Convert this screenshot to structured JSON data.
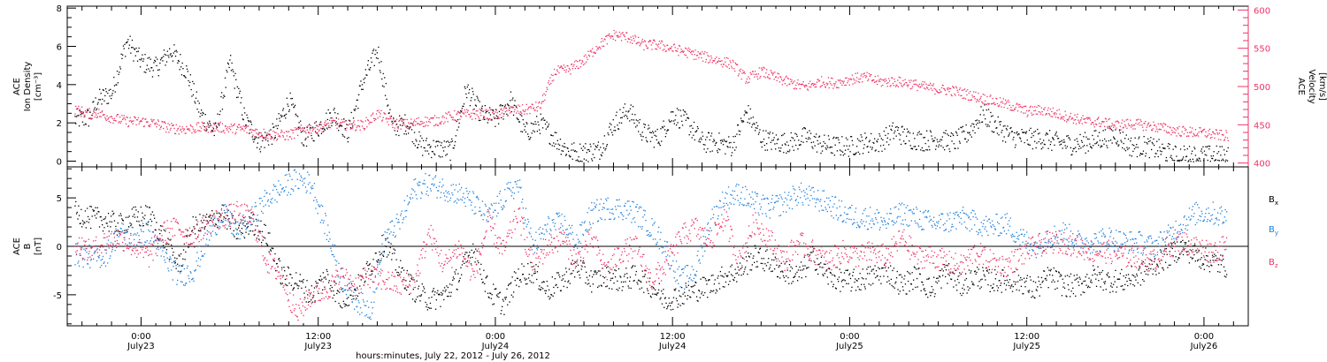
{
  "chart_data": [
    {
      "type": "scatter",
      "title": "",
      "xlabel": "",
      "ylabel": "ACE Ion Density [cm⁻³]",
      "ylabel_lines": [
        "ACE",
        "Ion Density",
        "[cm⁻³]"
      ],
      "ylim": [
        -0.3,
        8.1
      ],
      "yticks": [
        0,
        2,
        4,
        6,
        8
      ],
      "ytick_labels": [
        "0",
        "2",
        "4",
        "6",
        "8"
      ],
      "y2label": "ACE Velocity [km/s]",
      "y2label_lines": [
        "ACE",
        "Velocity",
        "[km/s]"
      ],
      "y2lim": [
        395,
        605
      ],
      "y2ticks": [
        400,
        450,
        500,
        550,
        600
      ],
      "y2tick_labels": [
        "400",
        "450",
        "500",
        "550",
        "600"
      ],
      "xlim_hours": [
        -5,
        75
      ],
      "series": [
        {
          "name": "",
          "axis": "left",
          "color": "#000000",
          "x_hours": [
            -4.5,
            -3.5,
            -3,
            -2,
            -1,
            0,
            1,
            2,
            3,
            4,
            5,
            6,
            7,
            8,
            9,
            10,
            11,
            12,
            13,
            14,
            15,
            16,
            17,
            18,
            19,
            20,
            21,
            22,
            23,
            24,
            25,
            26,
            27,
            28,
            29,
            30,
            31,
            32,
            33,
            34,
            35,
            36,
            37,
            38,
            39,
            40,
            41,
            42,
            43,
            44,
            45,
            46,
            47,
            48,
            49,
            50,
            51,
            52,
            53,
            54,
            55,
            56,
            57,
            58,
            59,
            60,
            61,
            62,
            63,
            64,
            65,
            66,
            67,
            68,
            69,
            70,
            71,
            72,
            73,
            73.6
          ],
          "values": [
            2.2,
            2.3,
            3.2,
            3.6,
            6.3,
            5.2,
            4.9,
            5.8,
            4.8,
            2.5,
            1.5,
            5.2,
            2.2,
            1.0,
            1.5,
            3.2,
            1.2,
            1.8,
            2.5,
            1.5,
            4.2,
            5.8,
            1.8,
            2.0,
            0.8,
            0.7,
            0.6,
            3.8,
            2.5,
            2.2,
            3.2,
            1.5,
            2.0,
            1.2,
            0.5,
            0.5,
            0.6,
            2.0,
            2.7,
            1.5,
            1.2,
            2.5,
            2.0,
            1.0,
            1.0,
            0.8,
            2.6,
            1.2,
            1.0,
            1.0,
            1.3,
            0.9,
            0.8,
            0.8,
            1.0,
            1.0,
            1.6,
            1.2,
            1.1,
            1.2,
            1.0,
            1.5,
            2.5,
            1.8,
            1.3,
            1.2,
            1.2,
            1.0,
            0.9,
            1.0,
            1.2,
            1.4,
            0.8,
            0.8,
            0.6,
            0.3,
            0.3,
            0.3,
            0.3,
            0.3
          ]
        },
        {
          "name": "",
          "axis": "right",
          "color": "#ee3366",
          "x_hours": [
            -4.5,
            -3.5,
            -3,
            -2,
            -1,
            0,
            1,
            2,
            3,
            4,
            5,
            6,
            7,
            8,
            9,
            10,
            11,
            12,
            13,
            14,
            15,
            16,
            17,
            18,
            19,
            20,
            21,
            22,
            23,
            24,
            25,
            26,
            27,
            28,
            29,
            30,
            31,
            32,
            33,
            34,
            35,
            36,
            37,
            38,
            39,
            40,
            41,
            42,
            43,
            44,
            45,
            46,
            47,
            48,
            49,
            50,
            51,
            52,
            53,
            54,
            55,
            56,
            57,
            58,
            59,
            60,
            61,
            62,
            63,
            64,
            65,
            66,
            67,
            68,
            69,
            70,
            71,
            72,
            73,
            73.6
          ],
          "values": [
            470,
            465,
            466,
            460,
            455,
            455,
            452,
            446,
            445,
            447,
            448,
            446,
            445,
            440,
            437,
            437,
            445,
            447,
            453,
            450,
            450,
            465,
            453,
            451,
            455,
            456,
            462,
            464,
            465,
            463,
            470,
            470,
            475,
            520,
            523,
            535,
            555,
            568,
            565,
            555,
            555,
            550,
            545,
            540,
            535,
            530,
            510,
            520,
            512,
            505,
            500,
            507,
            505,
            510,
            513,
            507,
            507,
            505,
            500,
            497,
            495,
            490,
            485,
            480,
            475,
            468,
            470,
            465,
            460,
            455,
            454,
            450,
            452,
            450,
            447,
            443,
            441,
            440,
            437,
            436
          ]
        }
      ],
      "xticks": [],
      "xtick_labels": []
    },
    {
      "type": "scatter",
      "title": "",
      "xlabel": "hours:minutes, July 22, 2012 - July 26, 2012",
      "ylabel": "ACE B [nT]",
      "ylabel_lines": [
        "ACE",
        "B",
        "[nT]"
      ],
      "ylim": [
        -8.2,
        8.2
      ],
      "yticks": [
        -5,
        0,
        5
      ],
      "ytick_labels": [
        "-5",
        "0",
        "5"
      ],
      "zero_line": true,
      "xlim_hours": [
        -5,
        75
      ],
      "xticks_hours": [
        0,
        12,
        24,
        36,
        48,
        60,
        72
      ],
      "xtick_labels": [
        "0:00",
        "12:00",
        "0:00",
        "12:00",
        "0:00",
        "12:00",
        "0:00"
      ],
      "xtick_dates": [
        "July23",
        "July23",
        "July24",
        "July24",
        "July25",
        "July25",
        "July26"
      ],
      "legend_placement": "right",
      "series": [
        {
          "name": "Bx",
          "name_base": "B",
          "name_sub": "x",
          "color": "#000000",
          "x_hours": [
            -4.5,
            -3.5,
            -2.5,
            -1.5,
            -0.5,
            0.5,
            1.5,
            2.5,
            3.5,
            4.5,
            5.5,
            6.5,
            7.5,
            8.5,
            9.5,
            10.5,
            11.5,
            12.5,
            13.5,
            14.5,
            15.5,
            16.5,
            17.5,
            18.5,
            19.5,
            20.5,
            21.5,
            22.5,
            23.5,
            24.5,
            25.5,
            26.5,
            27.5,
            28.5,
            29.5,
            30.5,
            31.5,
            32.5,
            33.5,
            34.5,
            35.5,
            36.5,
            37.5,
            38.5,
            39.5,
            40.5,
            41.5,
            42.5,
            43.5,
            44.5,
            45.5,
            46.5,
            47.5,
            48.5,
            49.5,
            50.5,
            51.5,
            52.5,
            53.5,
            54.5,
            55.5,
            56.5,
            57.5,
            58.5,
            59.5,
            60.5,
            61.5,
            62.5,
            63.5,
            64.5,
            65.5,
            66.5,
            67.5,
            68.5,
            69.5,
            70.5,
            71.5,
            72.5,
            73.5
          ],
          "values": [
            3.5,
            3.0,
            2.8,
            2.2,
            3.0,
            3.2,
            1.0,
            -2.0,
            2.0,
            2.5,
            3.5,
            1.5,
            2.5,
            1.0,
            -3.0,
            -3.5,
            -5.0,
            -3.0,
            -5.5,
            -4.5,
            -2.0,
            0.5,
            -2.5,
            -4.5,
            -5.5,
            -5.0,
            -3.0,
            0.0,
            -4.5,
            -6.0,
            -3.0,
            -2.5,
            -4.5,
            -3.5,
            -2.0,
            -3.5,
            -3.0,
            -3.5,
            -3.0,
            -4.0,
            -5.5,
            -5.0,
            -4.5,
            -4.0,
            -3.0,
            -2.5,
            -1.0,
            -1.5,
            -2.5,
            -3.0,
            -1.0,
            -3.0,
            -3.5,
            -3.5,
            -3.0,
            -2.5,
            -4.0,
            -3.0,
            -4.5,
            -2.5,
            -4.0,
            -3.0,
            -3.5,
            -3.5,
            -3.5,
            -4.5,
            -3.0,
            -4.0,
            -4.0,
            -3.0,
            -3.5,
            -3.5,
            -3.0,
            -2.0,
            -1.0,
            0.0,
            -1.0,
            -1.5,
            -2.0
          ]
        },
        {
          "name": "By",
          "name_base": "B",
          "name_sub": "y",
          "color": "#1f7fd9",
          "x_hours": [
            -4.5,
            -3.5,
            -2.5,
            -1.5,
            -0.5,
            0.5,
            1.5,
            2.5,
            3.5,
            4.5,
            5.5,
            6.5,
            7.5,
            8.5,
            9.5,
            10.5,
            11.5,
            12.5,
            13.5,
            14.5,
            15.5,
            16.5,
            17.5,
            18.5,
            19.5,
            20.5,
            21.5,
            22.5,
            23.5,
            24.5,
            25.5,
            26.5,
            27.5,
            28.5,
            29.5,
            30.5,
            31.5,
            32.5,
            33.5,
            34.5,
            35.5,
            36.5,
            37.5,
            38.5,
            39.5,
            40.5,
            41.5,
            42.5,
            43.5,
            44.5,
            45.5,
            46.5,
            47.5,
            48.5,
            49.5,
            50.5,
            51.5,
            52.5,
            53.5,
            54.5,
            55.5,
            56.5,
            57.5,
            58.5,
            59.5,
            60.5,
            61.5,
            62.5,
            63.5,
            64.5,
            65.5,
            66.5,
            67.5,
            68.5,
            69.5,
            70.5,
            71.5,
            72.5,
            73.5
          ],
          "values": [
            -0.8,
            -1.0,
            -1.0,
            1.5,
            1.0,
            1.5,
            -1.0,
            -3.0,
            -2.5,
            1.0,
            3.5,
            1.5,
            3.0,
            5.0,
            6.0,
            7.0,
            6.5,
            2.0,
            -3.0,
            -5.5,
            -6.5,
            1.0,
            2.5,
            6.0,
            6.5,
            6.0,
            5.5,
            4.5,
            3.0,
            5.0,
            6.5,
            0.0,
            2.0,
            2.5,
            0.5,
            3.5,
            4.0,
            4.0,
            3.5,
            2.0,
            0.0,
            -3.5,
            -2.5,
            2.5,
            5.0,
            5.5,
            4.5,
            4.0,
            4.5,
            5.5,
            5.0,
            4.5,
            3.5,
            3.0,
            3.0,
            2.5,
            3.5,
            3.0,
            2.5,
            2.5,
            3.0,
            2.5,
            2.0,
            2.5,
            1.0,
            0.0,
            1.0,
            1.5,
            0.5,
            0.5,
            1.0,
            0.5,
            0.5,
            0.0,
            1.0,
            2.5,
            3.5,
            3.5,
            3.0
          ]
        },
        {
          "name": "Bz",
          "name_base": "B",
          "name_sub": "z",
          "color": "#ee3366",
          "x_hours": [
            -4.5,
            -3.5,
            -2.5,
            -1.5,
            -0.5,
            0.5,
            1.5,
            2.5,
            3.5,
            4.5,
            5.5,
            6.5,
            7.5,
            8.5,
            9.5,
            10.5,
            11.5,
            12.5,
            13.5,
            14.5,
            15.5,
            16.5,
            17.5,
            18.5,
            19.5,
            20.5,
            21.5,
            22.5,
            23.5,
            24.5,
            25.5,
            26.5,
            27.5,
            28.5,
            29.5,
            30.5,
            31.5,
            32.5,
            33.5,
            34.5,
            35.5,
            36.5,
            37.5,
            38.5,
            39.5,
            40.5,
            41.5,
            42.5,
            43.5,
            44.5,
            45.5,
            46.5,
            47.5,
            48.5,
            49.5,
            50.5,
            51.5,
            52.5,
            53.5,
            54.5,
            55.5,
            56.5,
            57.5,
            58.5,
            59.5,
            60.5,
            61.5,
            62.5,
            63.5,
            64.5,
            65.5,
            66.5,
            67.5,
            68.5,
            69.5,
            70.5,
            71.5,
            72.5,
            73.5
          ],
          "values": [
            0.5,
            -0.5,
            0.5,
            1.0,
            0.0,
            -1.0,
            1.5,
            2.0,
            1.0,
            2.5,
            3.0,
            3.5,
            3.0,
            -1.5,
            -3.0,
            -7.0,
            -5.0,
            -4.5,
            -3.0,
            -4.0,
            -3.0,
            -3.5,
            -4.0,
            -3.5,
            1.5,
            -2.0,
            0.0,
            -3.0,
            2.5,
            -0.5,
            3.5,
            -2.0,
            0.0,
            1.0,
            -1.5,
            1.0,
            -2.5,
            -0.5,
            0.0,
            -3.5,
            -2.0,
            1.0,
            2.0,
            0.5,
            3.0,
            -1.5,
            2.5,
            1.0,
            -1.5,
            0.5,
            -0.5,
            -1.5,
            -0.5,
            -1.0,
            -0.5,
            -1.0,
            1.0,
            -1.0,
            -1.0,
            -1.5,
            -2.0,
            -0.5,
            -1.5,
            -2.0,
            -1.0,
            0.0,
            0.5,
            0.5,
            0.0,
            -0.5,
            -0.5,
            -1.0,
            -1.0,
            -1.5,
            0.0,
            0.5,
            0.0,
            -0.5,
            0.0
          ]
        }
      ]
    }
  ]
}
